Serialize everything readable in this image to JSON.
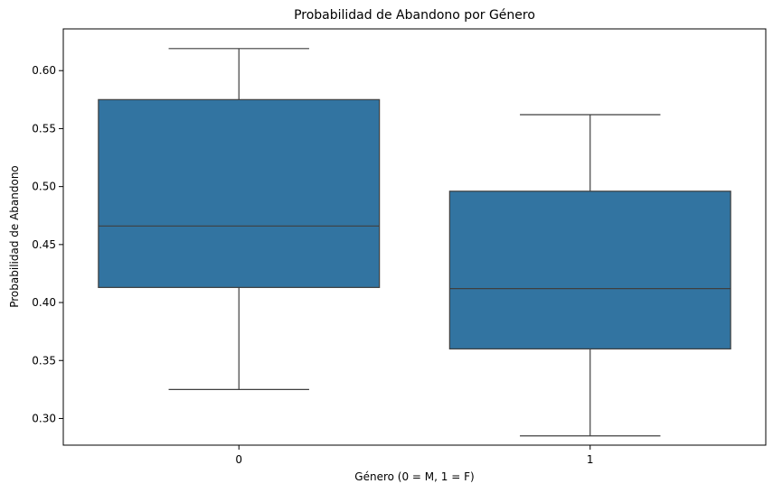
{
  "chart_data": {
    "type": "box",
    "title": "Probabilidad de Abandono por Género",
    "xlabel": "Género (0 = M, 1 = F)",
    "ylabel": "Probabilidad de Abandono",
    "categories": [
      "0",
      "1"
    ],
    "boxes": [
      {
        "category": "0",
        "min": 0.325,
        "q1": 0.413,
        "median": 0.466,
        "q3": 0.575,
        "max": 0.619
      },
      {
        "category": "1",
        "min": 0.285,
        "q1": 0.36,
        "median": 0.412,
        "q3": 0.496,
        "max": 0.562
      }
    ],
    "ylim": [
      0.277,
      0.636
    ],
    "yticks": [
      0.3,
      0.35,
      0.4,
      0.45,
      0.5,
      0.55,
      0.6
    ],
    "ytick_labels": [
      "0.30",
      "0.35",
      "0.40",
      "0.45",
      "0.50",
      "0.55",
      "0.60"
    ],
    "grid": false,
    "box_color": "#3274a1",
    "line_color": "#3f3f3f",
    "spine_color": "#000000"
  }
}
